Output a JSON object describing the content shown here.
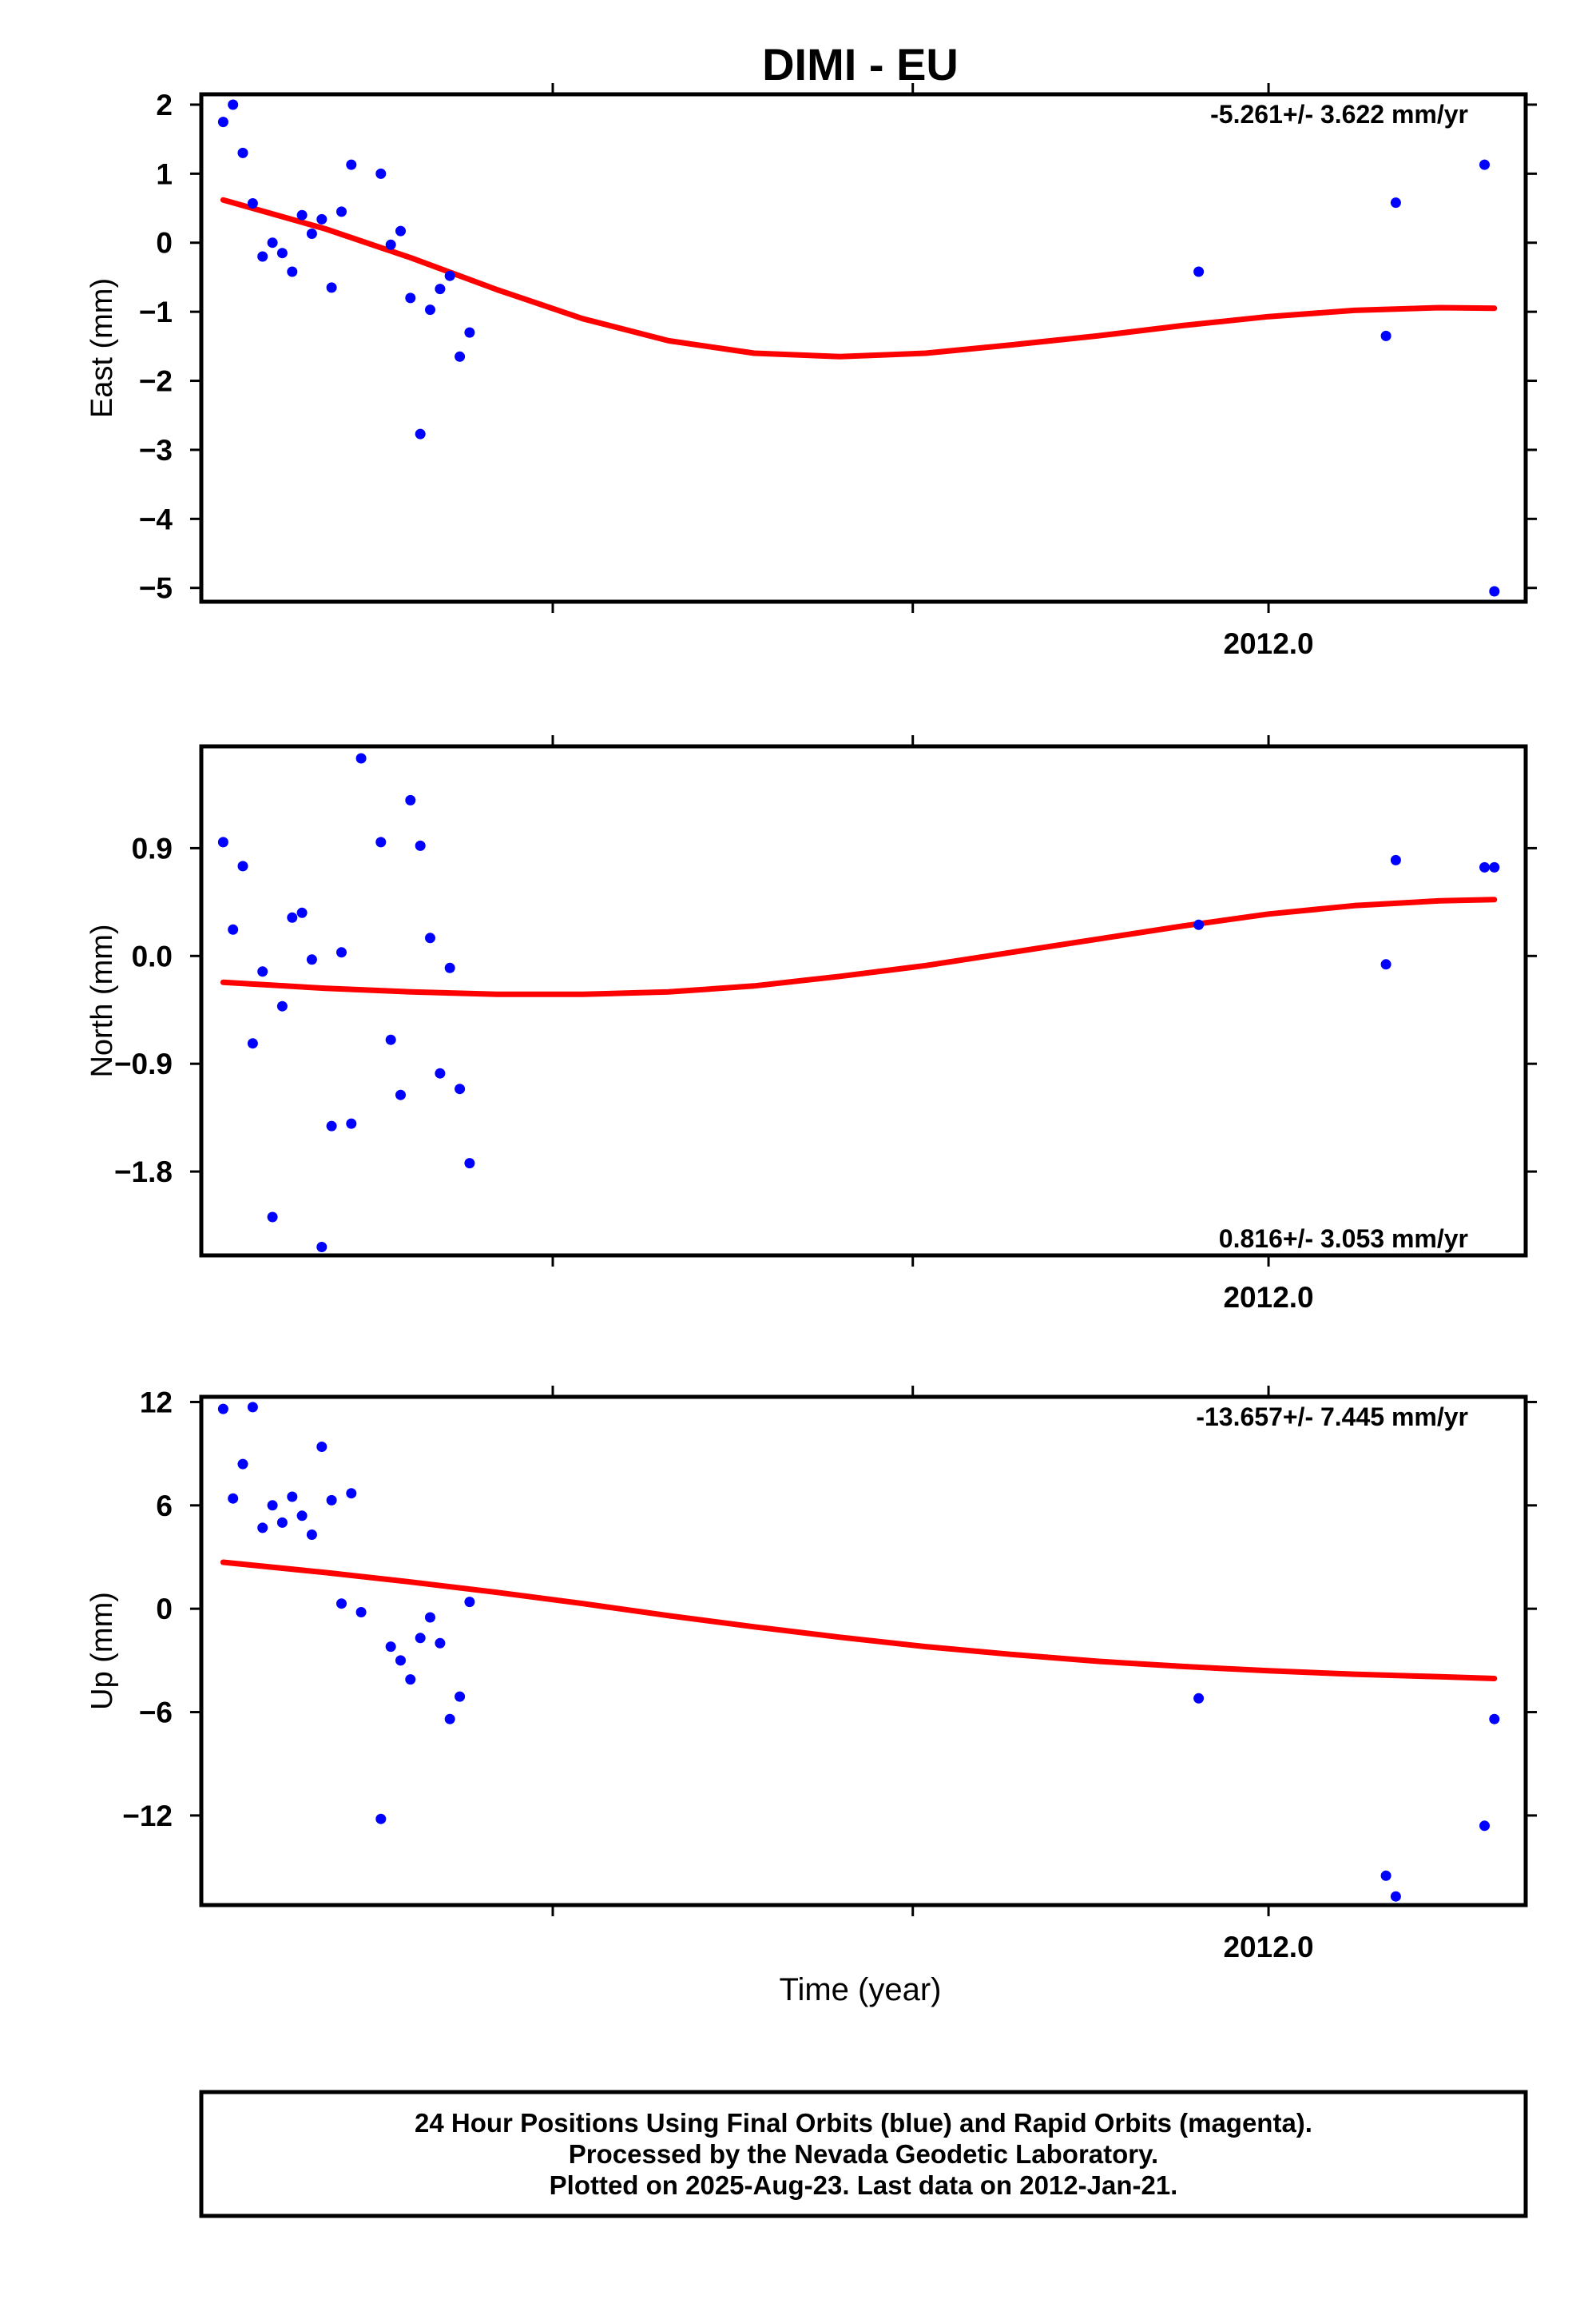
{
  "title": "DIMI - EU",
  "x_axis_label": "Time (year)",
  "footer_lines": [
    "24 Hour Positions Using Final Orbits (blue) and Rapid Orbits (magenta).",
    "Processed by the Nevada Geodetic Laboratory.",
    "Plotted on 2025-Aug-23. Last data on 2012-Jan-21."
  ],
  "colors": {
    "final_orbits": "#0000ff",
    "model_fit": "#ff0000",
    "frame": "#000000"
  },
  "chart_data": [
    {
      "type": "scatter",
      "component": "East",
      "ylabel": "East (mm)",
      "rate_text": "-5.261+/- 3.622 mm/yr",
      "rate_placement": "top-right",
      "xlim": [
        2011.751,
        2012.06
      ],
      "ylim": [
        -5.2,
        2.15
      ],
      "x_major_ticks": [
        2012.0
      ],
      "x_tick_labels": [
        "2012.0"
      ],
      "x_minor_ticks": [
        2011.75,
        2011.833,
        2011.917,
        2012.0,
        2012.083
      ],
      "y_ticks": [
        2,
        1,
        0,
        -1,
        -2,
        -3,
        -4,
        -5
      ],
      "y_tick_labels": [
        "2",
        "1",
        "0",
        "−1",
        "−2",
        "−3",
        "−4",
        "−5"
      ],
      "points": {
        "x": [
          2011.7561,
          2011.7584,
          2011.7607,
          2011.763,
          2011.7653,
          2011.7676,
          2011.7699,
          2011.7722,
          2011.7745,
          2011.7768,
          2011.7791,
          2011.7814,
          2011.7837,
          2011.786,
          2011.7929,
          2011.7952,
          2011.7975,
          2011.7998,
          2011.8021,
          2011.8044,
          2011.8067,
          2011.809,
          2011.8113,
          2011.8136,
          2011.9837,
          2012.0274,
          2012.0297,
          2012.0504,
          2012.0527
        ],
        "y": [
          1.75,
          2.0,
          1.3,
          0.57,
          -0.2,
          0.0,
          -0.15,
          -0.42,
          0.4,
          0.13,
          0.34,
          -0.65,
          0.45,
          1.13,
          1.0,
          -0.03,
          0.17,
          -0.8,
          -2.77,
          -0.97,
          -0.67,
          -0.48,
          -1.65,
          -1.3,
          -0.42,
          -1.35,
          0.58,
          1.13,
          -5.05
        ]
      },
      "model_curve": {
        "x": [
          2011.7561,
          2011.78,
          2011.8,
          2011.82,
          2011.84,
          2011.86,
          2011.88,
          2011.9,
          2011.92,
          2011.94,
          2011.96,
          2011.98,
          2012.0,
          2012.02,
          2012.04,
          2012.0527
        ],
        "y": [
          0.62,
          0.2,
          -0.22,
          -0.68,
          -1.1,
          -1.42,
          -1.6,
          -1.65,
          -1.6,
          -1.48,
          -1.35,
          -1.2,
          -1.07,
          -0.98,
          -0.94,
          -0.95
        ]
      }
    },
    {
      "type": "scatter",
      "component": "North",
      "ylabel": "North (mm)",
      "rate_text": "0.816+/- 3.053 mm/yr",
      "rate_placement": "bottom-right",
      "xlim": [
        2011.751,
        2012.06
      ],
      "ylim": [
        -2.5,
        1.75
      ],
      "x_major_ticks": [
        2012.0
      ],
      "x_tick_labels": [
        "2012.0"
      ],
      "x_minor_ticks": [
        2011.75,
        2011.833,
        2011.917,
        2012.0,
        2012.083
      ],
      "y_ticks": [
        0.9,
        0.0,
        -0.9,
        -1.8
      ],
      "y_tick_labels": [
        "0.9",
        "0.0",
        "−0.9",
        "−1.8"
      ],
      "points": {
        "x": [
          2011.7561,
          2011.7584,
          2011.7607,
          2011.763,
          2011.7653,
          2011.7676,
          2011.7699,
          2011.7722,
          2011.7745,
          2011.7768,
          2011.7791,
          2011.7814,
          2011.7837,
          2011.786,
          2011.7883,
          2011.7929,
          2011.7952,
          2011.7975,
          2011.7998,
          2011.8021,
          2011.8044,
          2011.8067,
          2011.809,
          2011.8113,
          2011.8136,
          2011.9837,
          2012.0274,
          2012.0297,
          2012.0504,
          2012.0527
        ],
        "y": [
          0.95,
          0.22,
          0.75,
          -0.73,
          -0.13,
          -2.18,
          -0.42,
          0.32,
          0.36,
          -0.03,
          -2.43,
          -1.42,
          0.03,
          -1.4,
          1.65,
          0.95,
          -0.7,
          -1.16,
          1.3,
          0.92,
          0.15,
          -0.98,
          -0.1,
          -1.11,
          -1.73,
          0.26,
          -0.07,
          0.8,
          0.74,
          0.74
        ]
      },
      "model_curve": {
        "x": [
          2011.7561,
          2011.78,
          2011.8,
          2011.82,
          2011.84,
          2011.86,
          2011.88,
          2011.9,
          2011.92,
          2011.94,
          2011.96,
          2011.98,
          2012.0,
          2012.02,
          2012.04,
          2012.0527
        ],
        "y": [
          -0.22,
          -0.27,
          -0.3,
          -0.32,
          -0.32,
          -0.3,
          -0.25,
          -0.17,
          -0.08,
          0.03,
          0.14,
          0.25,
          0.35,
          0.42,
          0.46,
          0.47
        ]
      }
    },
    {
      "type": "scatter",
      "component": "Up",
      "ylabel": "Up (mm)",
      "rate_text": "-13.657+/- 7.445 mm/yr",
      "rate_placement": "top-right",
      "xlim": [
        2011.751,
        2012.06
      ],
      "ylim": [
        -17.2,
        12.3
      ],
      "x_major_ticks": [
        2012.0
      ],
      "x_tick_labels": [
        "2012.0"
      ],
      "x_minor_ticks": [
        2011.75,
        2011.833,
        2011.917,
        2012.0,
        2012.083
      ],
      "y_ticks": [
        12,
        6,
        0,
        -6,
        -12
      ],
      "y_tick_labels": [
        "12",
        "6",
        "0",
        "−6",
        "−12"
      ],
      "points": {
        "x": [
          2011.7561,
          2011.7584,
          2011.7607,
          2011.763,
          2011.7653,
          2011.7676,
          2011.7699,
          2011.7722,
          2011.7745,
          2011.7768,
          2011.7791,
          2011.7814,
          2011.7837,
          2011.786,
          2011.7883,
          2011.7929,
          2011.7952,
          2011.7975,
          2011.7998,
          2011.8021,
          2011.8044,
          2011.8067,
          2011.809,
          2011.8113,
          2011.8136,
          2011.9837,
          2012.0274,
          2012.0297,
          2012.0504,
          2012.0527
        ],
        "y": [
          11.6,
          6.4,
          8.4,
          11.7,
          4.7,
          6.0,
          5.0,
          6.5,
          5.4,
          4.3,
          9.4,
          6.3,
          0.3,
          6.7,
          -0.2,
          -12.2,
          -2.2,
          -3.0,
          -4.1,
          -1.7,
          -0.5,
          -2.0,
          -6.4,
          -5.1,
          0.4,
          -5.2,
          -15.5,
          -16.7,
          -12.6,
          -6.4
        ]
      },
      "model_curve": {
        "x": [
          2011.7561,
          2011.78,
          2011.8,
          2011.82,
          2011.84,
          2011.86,
          2011.88,
          2011.9,
          2011.92,
          2011.94,
          2011.96,
          2011.98,
          2012.0,
          2012.02,
          2012.04,
          2012.0527
        ],
        "y": [
          2.7,
          2.1,
          1.55,
          0.95,
          0.3,
          -0.4,
          -1.05,
          -1.65,
          -2.2,
          -2.65,
          -3.05,
          -3.35,
          -3.6,
          -3.8,
          -3.95,
          -4.05
        ]
      }
    }
  ]
}
